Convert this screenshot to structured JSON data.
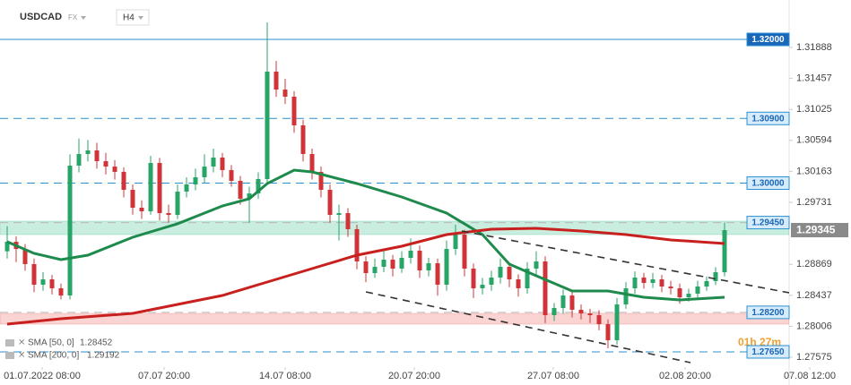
{
  "chart_data": {
    "type": "candlestick",
    "symbol": "USDCAD",
    "market": "FX",
    "timeframe": "H4",
    "timer": "01h 27m",
    "xlim": [
      -0.8,
      87.2
    ],
    "ylim": [
      1.27438,
      1.32549
    ],
    "yticks": [
      1.31888,
      1.31457,
      1.31025,
      1.30594,
      1.30163,
      1.29731,
      1.28869,
      1.28437,
      1.28006,
      1.27575
    ],
    "xticks": [
      {
        "value": 3.9,
        "label": "01.07.2022 08:00"
      },
      {
        "value": 17.5,
        "label": "07.07 20:00"
      },
      {
        "value": 31,
        "label": "14.07 08:00"
      },
      {
        "value": 45.4,
        "label": "20.07 20:00"
      },
      {
        "value": 60.9,
        "label": "27.07 08:00"
      },
      {
        "value": 75.6,
        "label": "02.08 20:00"
      },
      {
        "value": 89.5,
        "label": "07.08 12:00"
      }
    ],
    "up_color": "#27a567",
    "down_color": "#d13438",
    "open": [
      1.2905,
      1.29183,
      1.29083,
      1.28872,
      1.28585,
      1.2866,
      1.28535,
      1.28435,
      1.30243,
      1.30405,
      1.30455,
      1.30305,
      1.3023,
      1.30156,
      1.29906,
      1.29657,
      1.29607,
      1.3028,
      1.29582,
      1.29557,
      1.29881,
      1.29981,
      1.30081,
      1.3023,
      1.30355,
      1.30181,
      1.30031,
      1.29782,
      1.29856,
      1.30056,
      1.31552,
      1.31302,
      1.31203,
      1.30804,
      1.30405,
      1.30156,
      1.29906,
      1.29557,
      1.29582,
      1.29358,
      1.28909,
      1.28747,
      1.28834,
      1.28934,
      1.28809,
      1.28959,
      1.29059,
      1.28784,
      1.28884,
      1.28585,
      1.29083,
      1.29283,
      1.28809,
      1.28535,
      1.28585,
      1.28685,
      1.28834,
      1.2866,
      1.28535,
      1.28809,
      1.28909,
      1.28161,
      1.28261,
      1.28435,
      1.28236,
      1.28186,
      1.28161,
      1.28036,
      1.27812,
      1.28311,
      1.28535,
      1.28685,
      1.2861,
      1.2866,
      1.2856,
      1.28535,
      1.2841,
      1.2846,
      1.2856,
      1.28635,
      1.28759
    ],
    "high": [
      1.294,
      1.2926,
      1.2915,
      1.2895,
      1.2876,
      1.2872,
      1.286,
      1.304,
      1.3062,
      1.306,
      1.3056,
      1.3042,
      1.3032,
      1.3022,
      1.2998,
      1.2976,
      1.3038,
      1.3035,
      1.297,
      1.2998,
      1.3008,
      1.302,
      1.304,
      1.3048,
      1.3042,
      1.3025,
      1.301,
      1.2995,
      1.3015,
      1.32237,
      1.317,
      1.3145,
      1.3128,
      1.3088,
      1.3048,
      1.3023,
      1.2998,
      1.297,
      1.2965,
      1.2942,
      1.2898,
      1.2895,
      1.2905,
      1.29,
      1.2905,
      1.2923,
      1.2913,
      1.2896,
      1.2895,
      1.292,
      1.2942,
      1.2935,
      1.2888,
      1.2868,
      1.2878,
      1.2895,
      1.289,
      1.2873,
      1.289,
      1.2905,
      1.2898,
      1.2833,
      1.2852,
      1.285,
      1.2831,
      1.2825,
      1.2823,
      1.281,
      1.284,
      1.2862,
      1.2877,
      1.2875,
      1.2875,
      1.2872,
      1.2864,
      1.286,
      1.2853,
      1.2864,
      1.287,
      1.2883,
      1.2945
    ],
    "low": [
      1.2895,
      1.289,
      1.2878,
      1.2848,
      1.285,
      1.2845,
      1.2838,
      1.2838,
      1.3015,
      1.303,
      1.302,
      1.3012,
      1.3005,
      1.298,
      1.2956,
      1.295,
      1.2956,
      1.2948,
      1.2945,
      1.295,
      1.298,
      1.299,
      1.3,
      1.3015,
      1.3008,
      1.2995,
      1.297,
      1.2945,
      1.2978,
      1.2998,
      1.312,
      1.311,
      1.307,
      1.303,
      1.3005,
      1.298,
      1.2945,
      1.292,
      1.2925,
      1.288,
      1.2862,
      1.2868,
      1.2876,
      1.287,
      1.2875,
      1.2888,
      1.2868,
      1.287,
      1.2843,
      1.285,
      1.29,
      1.287,
      1.284,
      1.2845,
      1.285,
      1.286,
      1.2855,
      1.2842,
      1.2846,
      1.2872,
      1.2805,
      1.2808,
      1.2818,
      1.2813,
      1.281,
      1.2805,
      1.2795,
      1.277,
      1.2775,
      1.2825,
      1.2846,
      1.2853,
      1.2854,
      1.2848,
      1.2845,
      1.2832,
      1.2835,
      1.284,
      1.285,
      1.2858,
      1.287
    ],
    "close": [
      1.29183,
      1.29083,
      1.28872,
      1.28585,
      1.2866,
      1.28535,
      1.28435,
      1.30243,
      1.30405,
      1.30455,
      1.30305,
      1.3023,
      1.30156,
      1.29906,
      1.29657,
      1.29607,
      1.3028,
      1.29582,
      1.29557,
      1.29881,
      1.29981,
      1.30081,
      1.3023,
      1.30355,
      1.30181,
      1.30031,
      1.29782,
      1.29856,
      1.30056,
      1.31552,
      1.31302,
      1.31203,
      1.30804,
      1.30405,
      1.30156,
      1.29906,
      1.29557,
      1.29582,
      1.29358,
      1.28909,
      1.28747,
      1.28834,
      1.28934,
      1.28809,
      1.28959,
      1.29059,
      1.28784,
      1.28884,
      1.28585,
      1.29083,
      1.29283,
      1.28809,
      1.28535,
      1.28585,
      1.28685,
      1.28834,
      1.2866,
      1.28535,
      1.28809,
      1.28909,
      1.28161,
      1.28261,
      1.28435,
      1.28236,
      1.28186,
      1.28161,
      1.28036,
      1.27812,
      1.28311,
      1.28535,
      1.28685,
      1.2861,
      1.2866,
      1.2856,
      1.28535,
      1.2841,
      1.2846,
      1.2856,
      1.28635,
      1.28759,
      1.29345
    ],
    "current_price": 1.29345,
    "series": [
      {
        "name": "SMA [50, 0]",
        "last": 1.28452,
        "color": "#1e8a4c",
        "x": [
          0,
          3,
          6,
          9,
          14,
          19,
          24,
          27,
          29,
          32,
          34,
          39,
          44,
          49,
          53,
          56,
          59,
          63,
          67,
          71,
          75,
          80
        ],
        "values": [
          1.29183,
          1.29021,
          1.28934,
          1.28996,
          1.29246,
          1.29434,
          1.29682,
          1.29782,
          1.29993,
          1.3018,
          1.30156,
          1.29993,
          1.29807,
          1.29582,
          1.29283,
          1.28872,
          1.28709,
          1.28498,
          1.28498,
          1.2841,
          1.28373,
          1.2841
        ]
      },
      {
        "name": "SMA [200, 0]",
        "last": 1.29192,
        "color": "#c8201e",
        "x": [
          0,
          6,
          14,
          24,
          29,
          34,
          39,
          44,
          49,
          54,
          59,
          64,
          69,
          74,
          80
        ],
        "values": [
          1.28036,
          1.28111,
          1.28186,
          1.28435,
          1.28622,
          1.28809,
          1.28996,
          1.29121,
          1.29283,
          1.29358,
          1.2937,
          1.29333,
          1.29283,
          1.29208,
          1.29158
        ]
      }
    ],
    "trendlines": [
      {
        "x": [
          50.7,
          87.2
        ],
        "values": [
          1.29333,
          1.28473
        ]
      },
      {
        "x": [
          40,
          76.2
        ],
        "values": [
          1.28485,
          1.275
        ]
      }
    ],
    "levels": [
      {
        "value": 1.32,
        "label": "1.32000",
        "style": "solid"
      },
      {
        "value": 1.309,
        "label": "1.30900",
        "style": "dashed"
      },
      {
        "value": 1.3,
        "label": "1.30000",
        "style": "dashed"
      },
      {
        "value": 1.2945,
        "label": "1.29450",
        "style": "zone",
        "zone": [
          1.29283,
          1.2947
        ],
        "zone_color": "rgba(60,190,140,0.28)"
      },
      {
        "value": 1.282,
        "label": "1.28200",
        "style": "zone",
        "zone": [
          1.28036,
          1.28186
        ],
        "zone_color": "rgba(240,110,110,0.30)"
      },
      {
        "value": 1.2765,
        "label": "1.27650",
        "style": "dashed"
      }
    ]
  }
}
